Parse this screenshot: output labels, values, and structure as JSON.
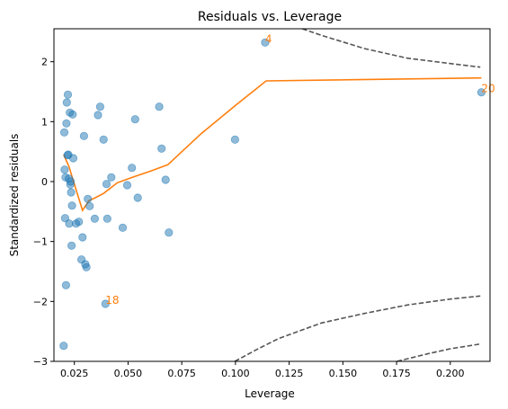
{
  "chart_data": {
    "type": "scatter",
    "title": "Residuals vs. Leverage",
    "xlabel": "Leverage",
    "ylabel": "Standardized residuals",
    "xlim": [
      0.0155,
      0.2185
    ],
    "ylim": [
      -3.0,
      2.55
    ],
    "xticks": [
      0.025,
      0.05,
      0.075,
      0.1,
      0.125,
      0.15,
      0.175,
      0.2
    ],
    "xtick_labels": [
      "0.025",
      "0.050",
      "0.075",
      "0.100",
      "0.125",
      "0.150",
      "0.175",
      "0.200"
    ],
    "yticks": [
      -3,
      -2,
      -1,
      0,
      1,
      2
    ],
    "ytick_labels": [
      "−3",
      "−2",
      "−1",
      "0",
      "1",
      "2"
    ],
    "grid": false,
    "colors": {
      "points": "#1f77b4",
      "smooth": "#ff7f0e",
      "cook": "#555555",
      "labels": "#ff7f0e"
    },
    "points": [
      {
        "x": 0.02,
        "y": -2.74
      },
      {
        "x": 0.0203,
        "y": 0.82
      },
      {
        "x": 0.0205,
        "y": 0.2
      },
      {
        "x": 0.0207,
        "y": -0.61
      },
      {
        "x": 0.0209,
        "y": 0.07
      },
      {
        "x": 0.0211,
        "y": -1.73
      },
      {
        "x": 0.0213,
        "y": 0.97
      },
      {
        "x": 0.0215,
        "y": 1.32
      },
      {
        "x": 0.0218,
        "y": 0.44
      },
      {
        "x": 0.022,
        "y": 1.45
      },
      {
        "x": 0.0222,
        "y": 0.45
      },
      {
        "x": 0.0224,
        "y": 0.05
      },
      {
        "x": 0.0226,
        "y": -0.7
      },
      {
        "x": 0.0229,
        "y": 1.15
      },
      {
        "x": 0.0231,
        "y": -0.05
      },
      {
        "x": 0.0233,
        "y": 0.0
      },
      {
        "x": 0.0235,
        "y": -0.18
      },
      {
        "x": 0.0237,
        "y": -1.07
      },
      {
        "x": 0.0239,
        "y": -0.4
      },
      {
        "x": 0.0242,
        "y": 1.12
      },
      {
        "x": 0.0245,
        "y": 0.39
      },
      {
        "x": 0.0258,
        "y": -0.7
      },
      {
        "x": 0.0271,
        "y": -0.67
      },
      {
        "x": 0.0283,
        "y": -1.3
      },
      {
        "x": 0.0288,
        "y": -0.93
      },
      {
        "x": 0.0295,
        "y": 0.76
      },
      {
        "x": 0.0301,
        "y": -1.38
      },
      {
        "x": 0.0306,
        "y": -1.43
      },
      {
        "x": 0.0313,
        "y": -0.29
      },
      {
        "x": 0.0321,
        "y": -0.41
      },
      {
        "x": 0.0345,
        "y": -0.62
      },
      {
        "x": 0.036,
        "y": 1.11
      },
      {
        "x": 0.037,
        "y": 1.25
      },
      {
        "x": 0.0386,
        "y": 0.7
      },
      {
        "x": 0.0395,
        "y": -2.04
      },
      {
        "x": 0.04,
        "y": -0.04
      },
      {
        "x": 0.0403,
        "y": -0.62
      },
      {
        "x": 0.0422,
        "y": 0.07
      },
      {
        "x": 0.0475,
        "y": -0.77
      },
      {
        "x": 0.0496,
        "y": -0.06
      },
      {
        "x": 0.0518,
        "y": 0.23
      },
      {
        "x": 0.0533,
        "y": 1.04
      },
      {
        "x": 0.0545,
        "y": -0.27
      },
      {
        "x": 0.0645,
        "y": 1.25
      },
      {
        "x": 0.0656,
        "y": 0.55
      },
      {
        "x": 0.0675,
        "y": 0.03
      },
      {
        "x": 0.069,
        "y": -0.85
      },
      {
        "x": 0.0998,
        "y": 0.7
      },
      {
        "x": 0.1138,
        "y": 2.32
      },
      {
        "x": 0.2145,
        "y": 1.49
      }
    ],
    "lowess": {
      "x": [
        0.02,
        0.0225,
        0.0248,
        0.0268,
        0.0288,
        0.0318,
        0.0347,
        0.0385,
        0.045,
        0.052,
        0.06,
        0.0685,
        0.084,
        0.1,
        0.1143,
        0.2145
      ],
      "y": [
        0.45,
        0.25,
        -0.02,
        -0.25,
        -0.48,
        -0.32,
        -0.27,
        -0.2,
        -0.02,
        0.07,
        0.17,
        0.28,
        0.8,
        1.27,
        1.68,
        1.73
      ]
    },
    "cooks_contours": [
      {
        "name": "cook-upper-outer",
        "x": [
          0.1311,
          0.14,
          0.16,
          0.18,
          0.2,
          0.214
        ],
        "y": [
          2.55,
          2.44,
          2.22,
          2.06,
          1.97,
          1.91
        ]
      },
      {
        "name": "cook-lower-inner",
        "x": [
          0.0997,
          0.11,
          0.12,
          0.14,
          0.16,
          0.18,
          0.2,
          0.214
        ],
        "y": [
          -3.0,
          -2.8,
          -2.62,
          -2.36,
          -2.2,
          -2.06,
          -1.96,
          -1.91
        ]
      },
      {
        "name": "cook-lower-outer",
        "x": [
          0.1752,
          0.19,
          0.2,
          0.214
        ],
        "y": [
          -3.0,
          -2.87,
          -2.79,
          -2.71
        ]
      }
    ],
    "annotations": [
      {
        "text": "4",
        "x": 0.1138,
        "y": 2.32
      },
      {
        "text": "20",
        "x": 0.2145,
        "y": 1.49
      },
      {
        "text": "18",
        "x": 0.0395,
        "y": -2.04
      }
    ]
  }
}
